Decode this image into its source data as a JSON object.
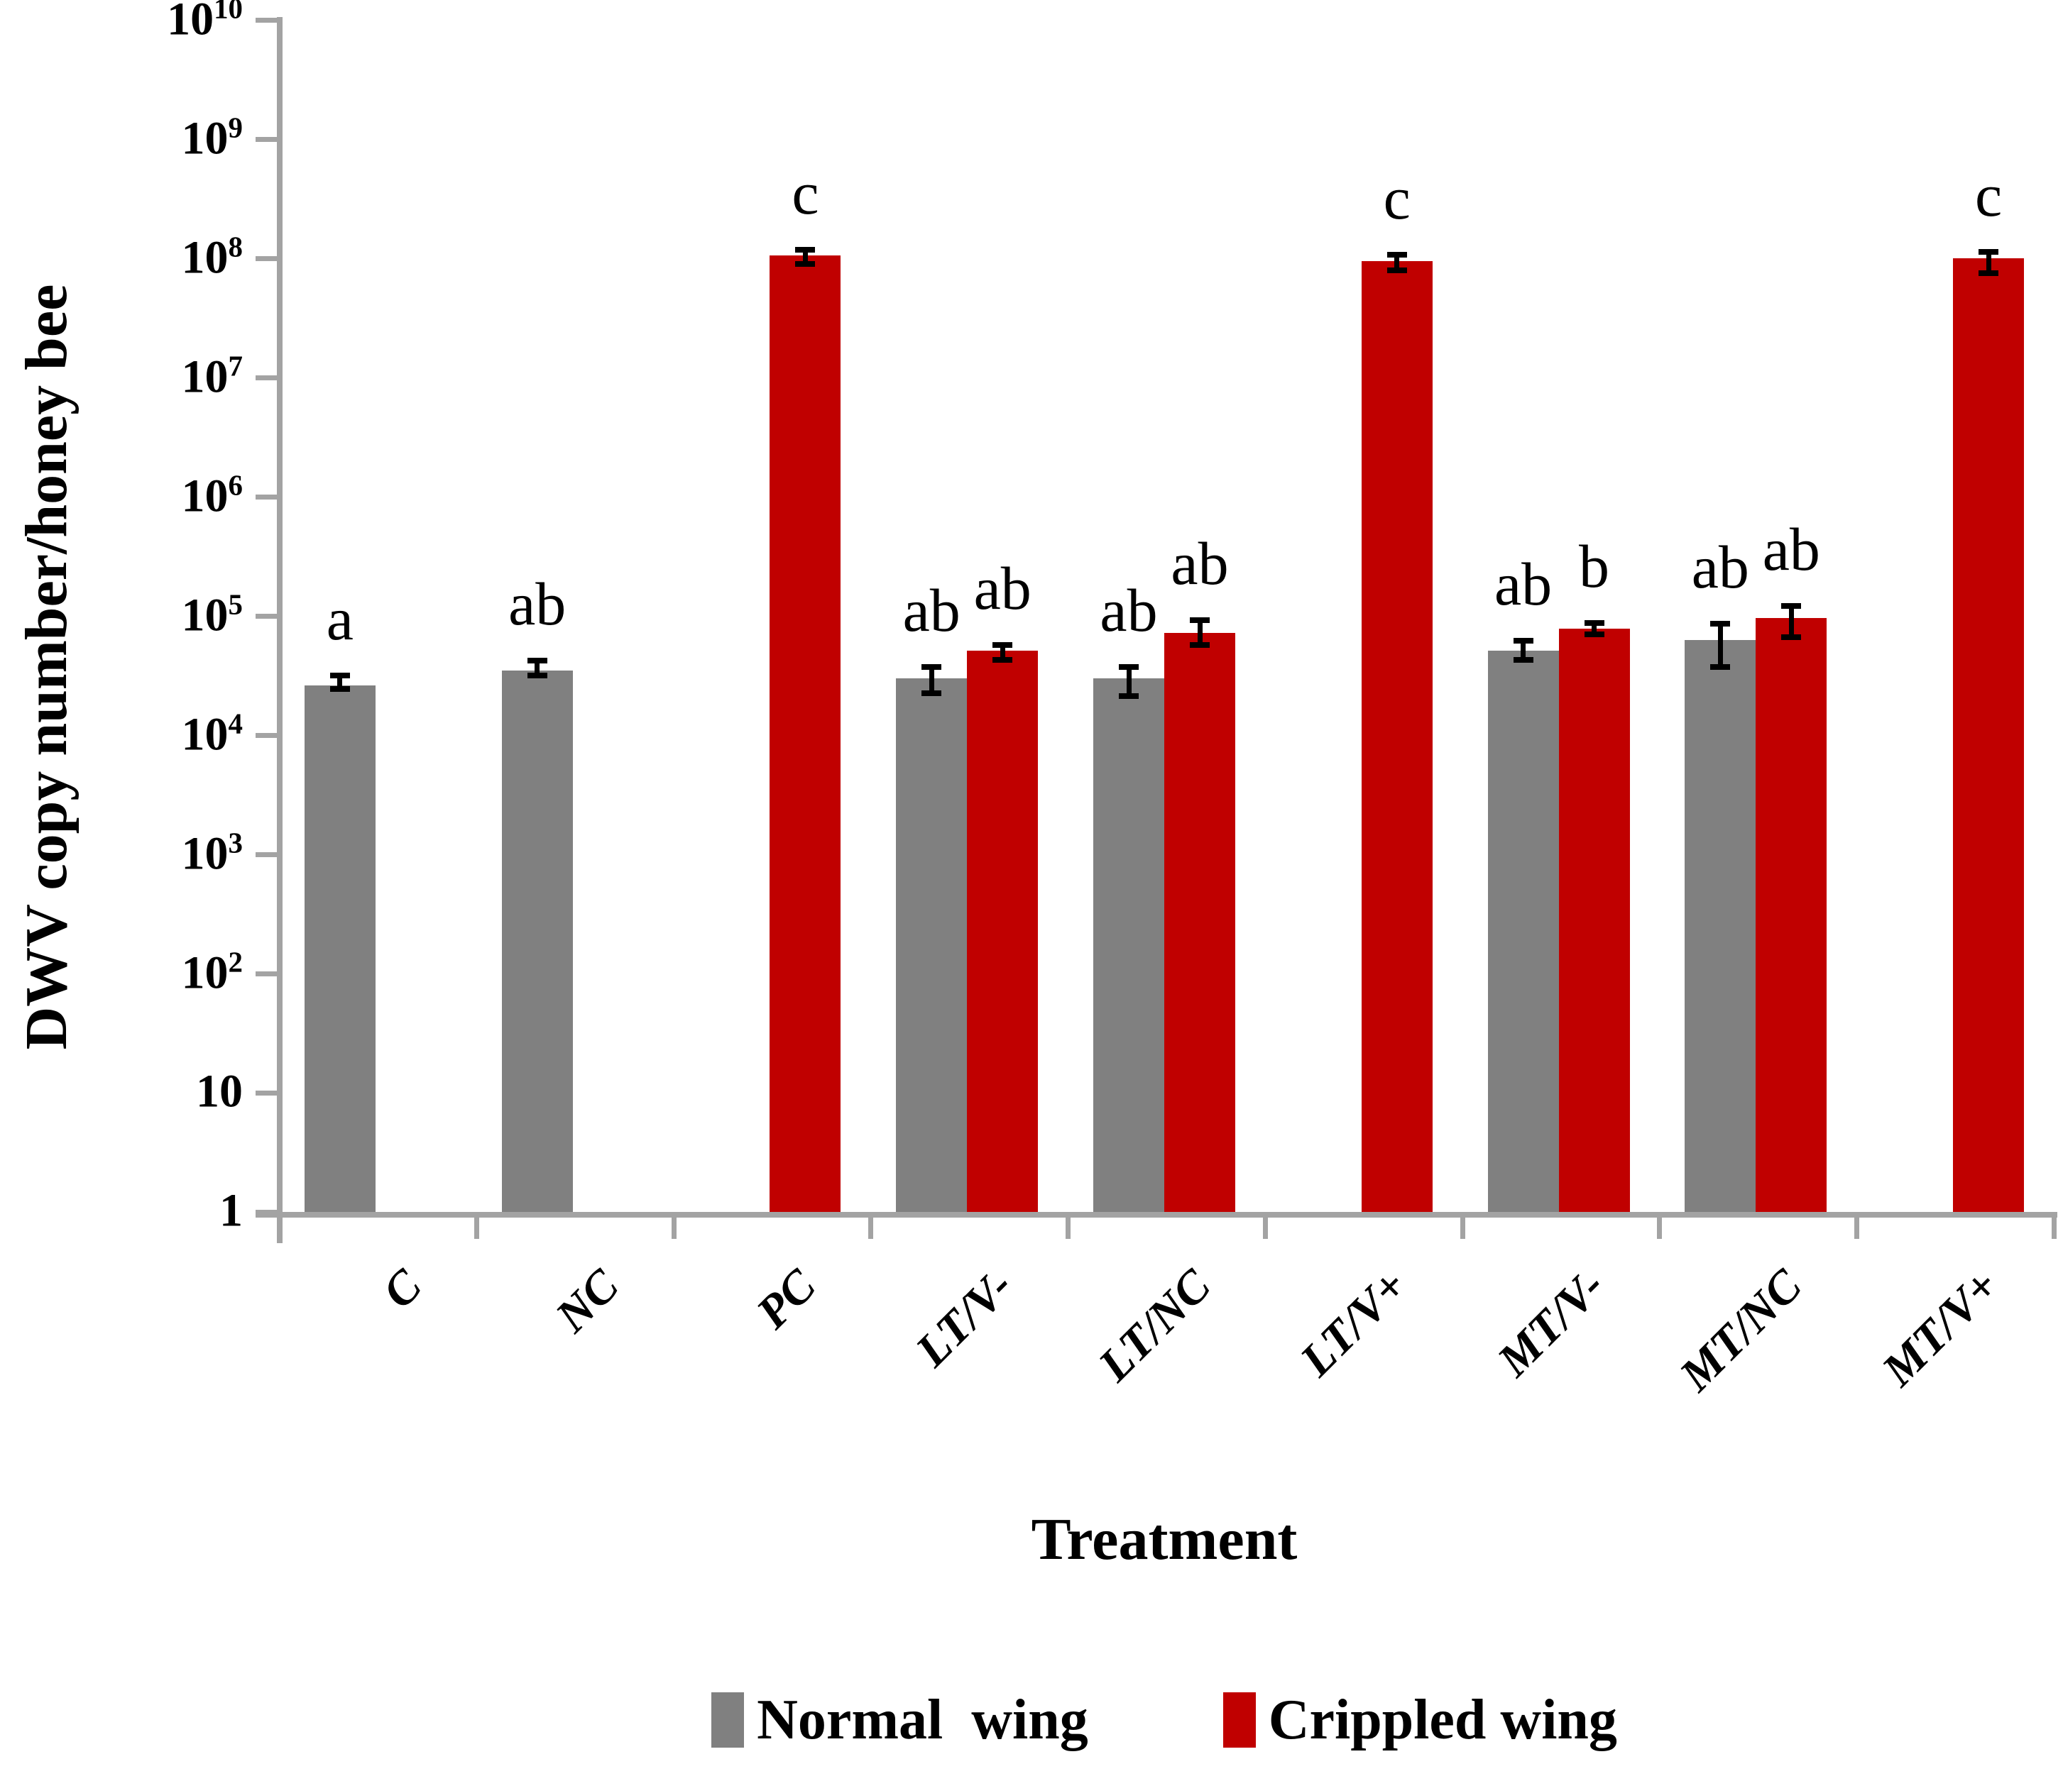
{
  "chart_data": {
    "type": "bar",
    "yscale": "log",
    "ylim": [
      1,
      10000000000
    ],
    "ylabel": "DWV copy number/honey bee",
    "xlabel": "Treatment",
    "grid": false,
    "legend_position": "bottom-center",
    "axis_color": "#A3A3A3",
    "ytick_exponents": [
      10,
      9,
      8,
      7,
      6,
      5,
      4,
      3,
      2,
      1,
      0
    ],
    "categories": [
      "C",
      "NC",
      "PC",
      "LT/V-",
      "LT/NC",
      "LT/V+",
      "MT/V-",
      "MT/NC",
      "MT/V+"
    ],
    "series": [
      {
        "name": "Normal  wing",
        "color": "#808080",
        "values": [
          26000,
          35000,
          null,
          30000,
          30000,
          null,
          51000,
          63000,
          null
        ],
        "err_hi": [
          32000,
          43000,
          null,
          38000,
          38000,
          null,
          63000,
          87000,
          null
        ],
        "err_lo": [
          24000,
          31000,
          null,
          22000,
          21000,
          null,
          42000,
          37000,
          null
        ],
        "letters": [
          "a",
          "ab",
          null,
          "ab",
          "ab",
          null,
          "ab",
          "ab",
          null
        ]
      },
      {
        "name": "Crippled wing",
        "color": "#C00000",
        "values": [
          null,
          null,
          105000000,
          51000,
          72000,
          95000000,
          78000,
          96000,
          100000000
        ],
        "err_hi": [
          null,
          null,
          120000000,
          58000,
          93000,
          108000000,
          89000,
          123000,
          115000000
        ],
        "err_lo": [
          null,
          null,
          89000000,
          42000,
          56000,
          78000000,
          69000,
          65000,
          74000000
        ],
        "letters": [
          null,
          null,
          "c",
          "ab",
          "ab",
          "c",
          "b",
          "ab",
          "c"
        ]
      }
    ]
  }
}
